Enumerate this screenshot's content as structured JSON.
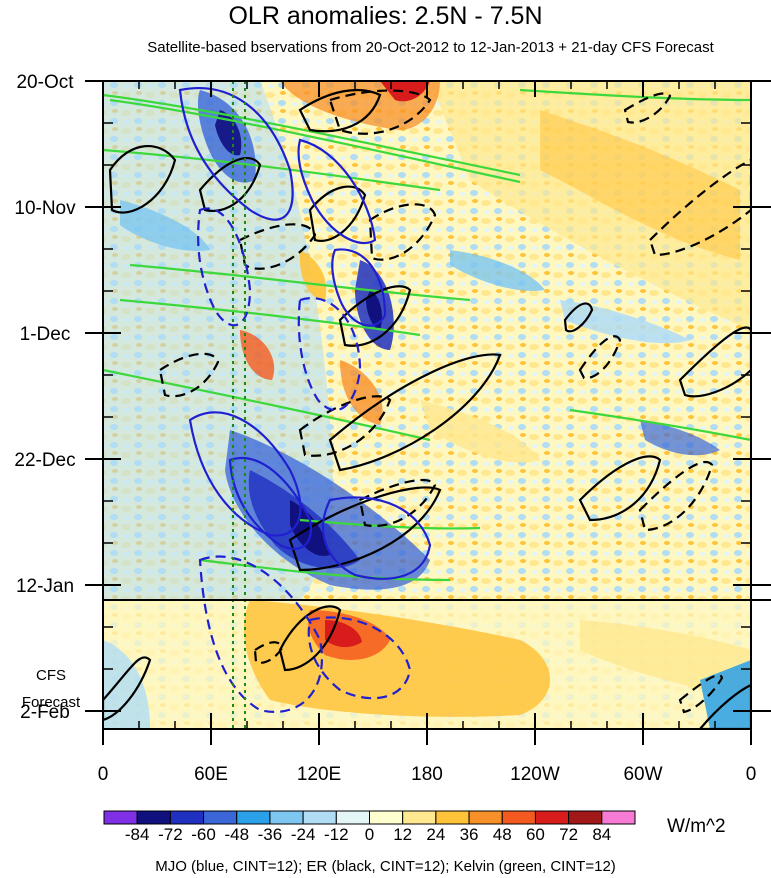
{
  "chart_data": {
    "type": "heatmap",
    "title": "OLR anomalies: 2.5N - 7.5N",
    "subtitle": "Satellite-based bservations from 20-Oct-2012 to 12-Jan-2013 + 21-day CFS Forecast",
    "xlabel": "",
    "ylabel": "",
    "x_ticks": [
      "0",
      "60E",
      "120E",
      "180",
      "120W",
      "60W",
      "0"
    ],
    "x_tick_values": [
      0,
      60,
      120,
      180,
      240,
      300,
      360
    ],
    "y_ticks": [
      "20-Oct",
      "10-Nov",
      "1-Dec",
      "22-Dec",
      "12-Jan",
      "2-Feb"
    ],
    "y_tick_days": [
      0,
      21,
      42,
      63,
      84,
      105
    ],
    "forecast_start": "12-Jan",
    "forecast_label_1": "CFS",
    "forecast_label_2": "Forecast",
    "units": "W/m^2",
    "colorbar": {
      "levels": [
        "-84",
        "-72",
        "-60",
        "-48",
        "-36",
        "-24",
        "-12",
        "0",
        "12",
        "24",
        "36",
        "48",
        "60",
        "72",
        "84"
      ],
      "colors": [
        "#7f2fe6",
        "#10107f",
        "#2030c0",
        "#3a66d8",
        "#2aa0e8",
        "#7cc6f0",
        "#b0dcf4",
        "#e4f6f8",
        "#ffffd0",
        "#ffe890",
        "#ffc33a",
        "#f8902a",
        "#f45a20",
        "#d81c1c",
        "#a01818",
        "#f77bd4"
      ]
    },
    "caption": "MJO (blue, CINT=12); ER (black, CINT=12); Kelvin (green, CINT=12)"
  }
}
